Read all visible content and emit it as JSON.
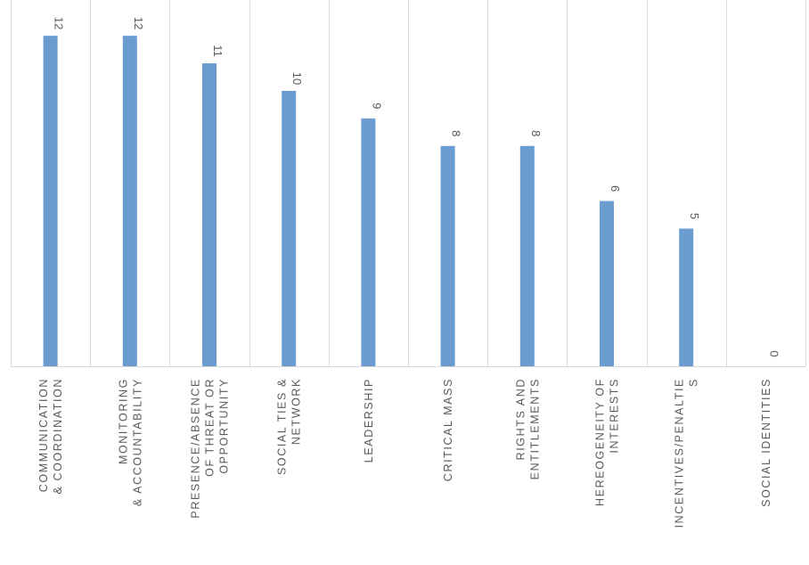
{
  "chart_data": {
    "type": "bar",
    "title": "",
    "xlabel": "",
    "ylabel": "",
    "ylim": [
      0,
      13.3
    ],
    "grid": true,
    "legend": "none",
    "bar_color": "#6a9ccf",
    "categories": [
      [
        "COMMUNICATION",
        "& COORDINATION"
      ],
      [
        "MONITORING",
        "& ACCOUNTABILITY"
      ],
      [
        "PRESENCE/ABSENCE",
        "OF THREAT OR",
        "OPPORTUNITY"
      ],
      [
        "SOCIAL TIES &",
        "NETWORK"
      ],
      [
        "LEADERSHIP"
      ],
      [
        "CRITICAL MASS"
      ],
      [
        "RIGHTS AND",
        "ENTITLEMENTS"
      ],
      [
        "HEREOGENEITY OF",
        "INTERESTS"
      ],
      [
        "INCENTIVES/PENALTIE",
        "S"
      ],
      [
        "SOCIAL IDENTITIES"
      ]
    ],
    "values": [
      12,
      12,
      11,
      10,
      9,
      8,
      8,
      6,
      5,
      0
    ]
  }
}
